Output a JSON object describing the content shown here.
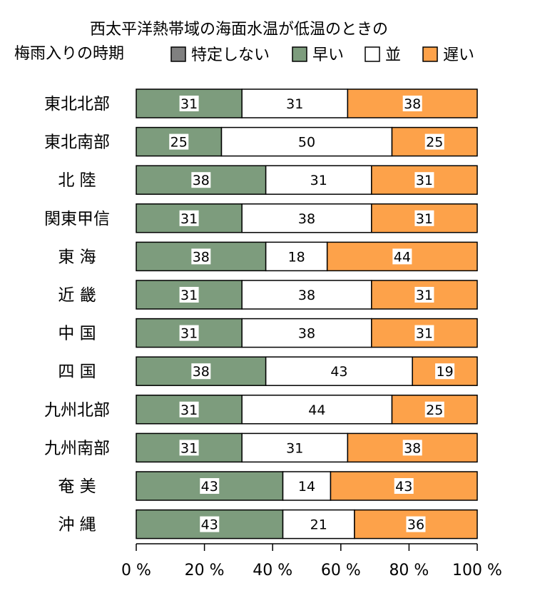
{
  "chart_data": {
    "type": "bar",
    "orientation": "horizontal",
    "stacked": true,
    "percent": true,
    "title_line1": "西太平洋熱帯域の海面水温が低温のときの",
    "title_line2": "梅雨入りの時期",
    "legend": {
      "placement": "top",
      "entries": [
        {
          "name": "特定しない",
          "color": "#808080"
        },
        {
          "name": "早い",
          "color": "#7d9c7d"
        },
        {
          "name": "並",
          "color": "#ffffff"
        },
        {
          "name": "遅い",
          "color": "#fda24a"
        }
      ]
    },
    "categories": [
      "東北北部",
      "東北南部",
      "北 陸",
      "関東甲信",
      "東 海",
      "近 畿",
      "中 国",
      "四 国",
      "九州北部",
      "九州南部",
      "奄 美",
      "沖 縄"
    ],
    "series": [
      {
        "name": "特定しない",
        "color": "#808080",
        "values": [
          0,
          0,
          0,
          0,
          0,
          0,
          0,
          0,
          0,
          0,
          0,
          0
        ]
      },
      {
        "name": "早い",
        "color": "#7d9c7d",
        "values": [
          31,
          25,
          38,
          31,
          38,
          31,
          31,
          38,
          31,
          31,
          43,
          43
        ]
      },
      {
        "name": "並",
        "color": "#ffffff",
        "values": [
          31,
          50,
          31,
          38,
          18,
          38,
          38,
          43,
          44,
          31,
          14,
          21
        ]
      },
      {
        "name": "遅い",
        "color": "#fda24a",
        "values": [
          38,
          25,
          31,
          31,
          44,
          31,
          31,
          19,
          25,
          38,
          43,
          36
        ]
      }
    ],
    "x_ticks": [
      "0 %",
      "20 %",
      "40 %",
      "60 %",
      "80 %",
      "100 %"
    ],
    "xlim": [
      0,
      100
    ],
    "grid": false
  }
}
